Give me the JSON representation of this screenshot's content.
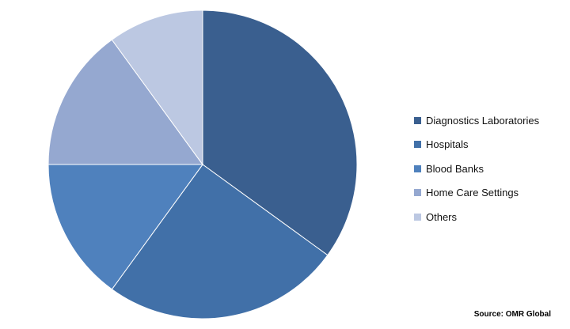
{
  "chart_data": {
    "type": "pie",
    "categories": [
      "Diagnostics Laboratories",
      "Hospitals",
      "Blood Banks",
      "Home Care Settings",
      "Others"
    ],
    "values": [
      35,
      25,
      15,
      15,
      10
    ],
    "colors": [
      "#3a5f8f",
      "#4170a8",
      "#4f81bd",
      "#95a8d0",
      "#bcc8e2"
    ],
    "start_angle_deg": 90,
    "direction": "clockwise",
    "legend_position": "right"
  },
  "legend": {
    "items": [
      {
        "label": "Diagnostics Laboratories",
        "color": "#3a5f8f"
      },
      {
        "label": "Hospitals",
        "color": "#4170a8"
      },
      {
        "label": "Blood Banks",
        "color": "#4f81bd"
      },
      {
        "label": "Home Care Settings",
        "color": "#95a8d0"
      },
      {
        "label": "Others",
        "color": "#bcc8e2"
      }
    ]
  },
  "source_text": "Source: OMR Global"
}
